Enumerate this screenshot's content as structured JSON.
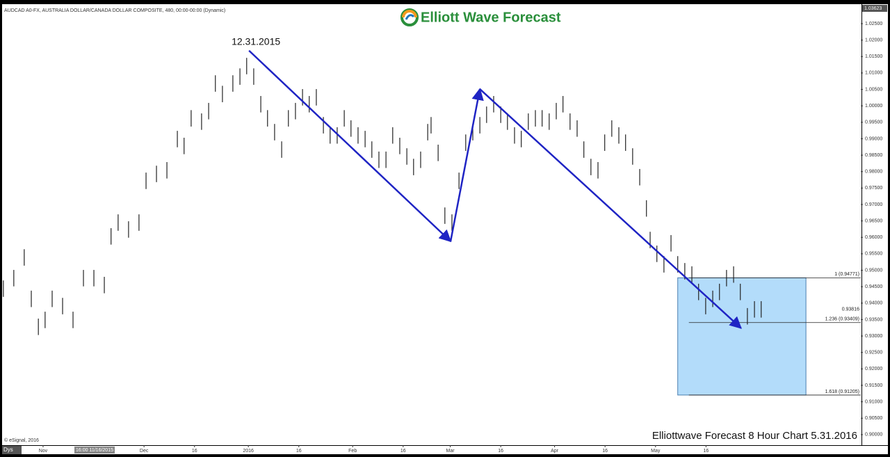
{
  "chart_data": {
    "type": "ohlc",
    "header": "AUDCAD A0-FX, AUSTRALIA DOLLAR/CANADA DOLLAR COMPOSITE, 480, 00:00-00:00 (Dynamic)",
    "logo": "Elliott Wave Forecast",
    "footer": "Elliottwave Forecast 8 Hour Chart 5.31.2016",
    "copyright": "© eSignal, 2016",
    "bottom_bar": {
      "period": "Dys",
      "cursor_date": "16:00 11/16/2015"
    },
    "axis_top_label": "1.03623",
    "color": "#222222",
    "xlim": [
      -12.8,
      243
    ],
    "ylim": [
      0.8968,
      1.0305
    ],
    "xticks": [
      {
        "value": 0,
        "label": "Nov"
      },
      {
        "value": 30,
        "label": "Dec"
      },
      {
        "value": 45,
        "label": "16"
      },
      {
        "value": 61,
        "label": "2016"
      },
      {
        "value": 76,
        "label": "16"
      },
      {
        "value": 92,
        "label": "Feb"
      },
      {
        "value": 107,
        "label": "16"
      },
      {
        "value": 121,
        "label": "Mar"
      },
      {
        "value": 136,
        "label": "16"
      },
      {
        "value": 152,
        "label": "Apr"
      },
      {
        "value": 167,
        "label": "16"
      },
      {
        "value": 182,
        "label": "May"
      },
      {
        "value": 197,
        "label": "16"
      }
    ],
    "yticks": [
      {
        "value": 0.9,
        "label": "0.90000"
      },
      {
        "value": 0.905,
        "label": "0.90500"
      },
      {
        "value": 0.91,
        "label": "0.91000"
      },
      {
        "value": 0.915,
        "label": "0.91500"
      },
      {
        "value": 0.92,
        "label": "0.92000"
      },
      {
        "value": 0.925,
        "label": "0.92500"
      },
      {
        "value": 0.93,
        "label": "0.93000"
      },
      {
        "value": 0.935,
        "label": "0.93500"
      },
      {
        "value": 0.94,
        "label": "0.94000"
      },
      {
        "value": 0.945,
        "label": "0.94500"
      },
      {
        "value": 0.95,
        "label": "0.95000"
      },
      {
        "value": 0.955,
        "label": "0.95500"
      },
      {
        "value": 0.96,
        "label": "0.96000"
      },
      {
        "value": 0.965,
        "label": "0.96500"
      },
      {
        "value": 0.97,
        "label": "0.97000"
      },
      {
        "value": 0.975,
        "label": "0.97500"
      },
      {
        "value": 0.98,
        "label": "0.98000"
      },
      {
        "value": 0.985,
        "label": "0.98500"
      },
      {
        "value": 0.99,
        "label": "0.99000"
      },
      {
        "value": 0.995,
        "label": "0.99500"
      },
      {
        "value": 1.0,
        "label": "1.00000"
      },
      {
        "value": 1.005,
        "label": "1.00500"
      },
      {
        "value": 1.01,
        "label": "1.01000"
      },
      {
        "value": 1.015,
        "label": "1.01500"
      },
      {
        "value": 1.02,
        "label": "1.02000"
      },
      {
        "value": 1.025,
        "label": "1.02500"
      }
    ],
    "x": [
      -11.8,
      -8.7,
      -5.6,
      -3.5,
      -1.4,
      0.6,
      2.7,
      5.8,
      8.9,
      12.0,
      15.1,
      18.2,
      20.2,
      22.3,
      25.4,
      28.5,
      30.6,
      33.7,
      36.8,
      39.9,
      41.9,
      44.0,
      47.1,
      49.2,
      51.2,
      53.3,
      56.4,
      58.5,
      60.5,
      62.6,
      64.7,
      66.7,
      68.8,
      70.9,
      72.9,
      75.0,
      77.1,
      79.1,
      81.2,
      83.3,
      85.3,
      87.4,
      89.5,
      91.5,
      93.6,
      95.7,
      97.7,
      99.8,
      101.9,
      103.9,
      106.0,
      108.1,
      110.1,
      112.2,
      114.3,
      115.3,
      117.4,
      119.4,
      121.5,
      123.6,
      125.6,
      127.7,
      129.8,
      131.8,
      133.9,
      136.0,
      138.0,
      140.1,
      142.1,
      144.2,
      146.3,
      148.3,
      150.4,
      152.5,
      154.5,
      156.6,
      158.7,
      160.7,
      162.8,
      164.9,
      166.9,
      169.0,
      171.1,
      173.1,
      175.2,
      177.3,
      179.3,
      180.4,
      182.4,
      184.5,
      186.6,
      188.6,
      190.7,
      192.8,
      194.8,
      196.9,
      199.0,
      201.0,
      203.1,
      205.2,
      207.2,
      209.3,
      211.4,
      213.4
    ],
    "high": [
      0.9469,
      0.9501,
      0.9564,
      0.9438,
      0.9353,
      0.9374,
      0.9438,
      0.9416,
      0.9374,
      0.9501,
      0.9501,
      0.948,
      0.9628,
      0.967,
      0.9649,
      0.967,
      0.9797,
      0.9818,
      0.9829,
      0.9924,
      0.9903,
      0.9987,
      0.9977,
      1.0009,
      1.0093,
      1.0061,
      1.0093,
      1.0114,
      1.0146,
      1.0114,
      1.003,
      0.9987,
      0.9945,
      0.9892,
      0.9987,
      1.0009,
      1.0051,
      1.003,
      1.0051,
      0.9966,
      0.9935,
      0.9935,
      0.9987,
      0.9956,
      0.9935,
      0.9924,
      0.9892,
      0.9861,
      0.9861,
      0.9935,
      0.9903,
      0.9871,
      0.9839,
      0.9861,
      0.9945,
      0.9966,
      0.9882,
      0.9691,
      0.967,
      0.9797,
      0.9913,
      0.9945,
      0.9966,
      0.9998,
      1.003,
      0.9998,
      0.9977,
      0.9935,
      0.9924,
      0.9977,
      0.9987,
      0.9987,
      0.9977,
      1.0009,
      1.003,
      0.9977,
      0.9956,
      0.9892,
      0.9839,
      0.9829,
      0.9913,
      0.9956,
      0.9935,
      0.9913,
      0.9871,
      0.9808,
      0.9713,
      0.9617,
      0.9575,
      0.9543,
      0.9607,
      0.9543,
      0.9522,
      0.9512,
      0.9459,
      0.9416,
      0.9438,
      0.9459,
      0.9501,
      0.9512,
      0.9459,
      0.9385,
      0.9406,
      0.9406
    ],
    "low": [
      0.9419,
      0.9451,
      0.9514,
      0.9388,
      0.9303,
      0.9324,
      0.9388,
      0.9366,
      0.9324,
      0.9451,
      0.9451,
      0.943,
      0.9578,
      0.962,
      0.9599,
      0.962,
      0.9747,
      0.9768,
      0.9779,
      0.9874,
      0.9853,
      0.9937,
      0.9927,
      0.9959,
      1.0043,
      1.0011,
      1.0043,
      1.0064,
      1.0096,
      1.0064,
      0.998,
      0.9937,
      0.9895,
      0.9842,
      0.9937,
      0.9959,
      1.0001,
      0.998,
      1.0001,
      0.9916,
      0.9885,
      0.9885,
      0.9937,
      0.9906,
      0.9885,
      0.9874,
      0.9842,
      0.9811,
      0.9811,
      0.9885,
      0.9853,
      0.9821,
      0.9789,
      0.9811,
      0.9895,
      0.9916,
      0.9832,
      0.9641,
      0.962,
      0.9747,
      0.9863,
      0.9895,
      0.9916,
      0.9948,
      0.998,
      0.9948,
      0.9927,
      0.9885,
      0.9874,
      0.9927,
      0.9937,
      0.9937,
      0.9927,
      0.9959,
      0.998,
      0.9927,
      0.9906,
      0.9842,
      0.9789,
      0.9779,
      0.9863,
      0.9906,
      0.9885,
      0.9863,
      0.9821,
      0.9758,
      0.9663,
      0.9567,
      0.9525,
      0.9493,
      0.9557,
      0.9493,
      0.9472,
      0.9462,
      0.9409,
      0.9366,
      0.9388,
      0.9409,
      0.9451,
      0.9462,
      0.9409,
      0.9335,
      0.9356,
      0.9356
    ],
    "wave": {
      "x": [
        61.2,
        121.1,
        129.8,
        207.4
      ],
      "y": [
        1.0168,
        0.9588,
        1.0051,
        0.9324
      ],
      "color": "#1f24c4"
    },
    "annotation": {
      "text": "12.31.2015",
      "x": 61.2,
      "y": 1.0168
    },
    "fib_box": {
      "x": [
        188.6,
        226.7
      ],
      "y": [
        0.91205,
        0.94771
      ],
      "color": "#b3dcfa"
    },
    "fib_levels": [
      {
        "value": 0.94771,
        "label": "1 (0.94771)"
      },
      {
        "value": 0.93409,
        "label": "1.236 (0.93409)"
      },
      {
        "value": 0.91205,
        "label": "1.618 (0.91205)"
      }
    ],
    "last_price": {
      "value": 0.93816,
      "label": "0.93816"
    }
  }
}
